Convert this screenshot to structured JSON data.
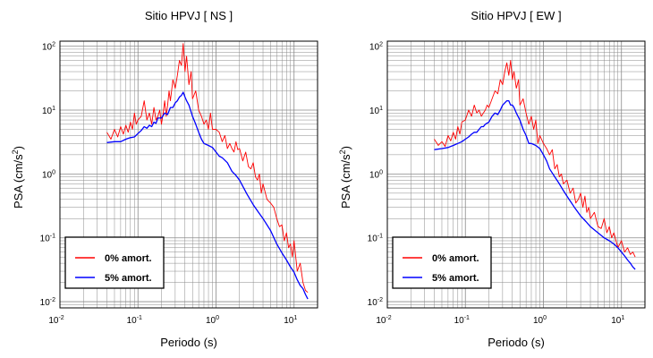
{
  "chart_data": [
    {
      "type": "line",
      "title": "Sitio HPVJ [ NS ]",
      "xlabel": "Periodo (s)",
      "ylabel_main": "PSA (cm/s",
      "ylabel_sup": "2",
      "ylabel_end": ")",
      "x_scale": "log",
      "y_scale": "log",
      "xlim": [
        0.01,
        20
      ],
      "ylim": [
        0.008,
        120
      ],
      "x_ticks": [
        {
          "value": 0.01,
          "base": "10",
          "exp": "-2"
        },
        {
          "value": 0.1,
          "base": "10",
          "exp": "-1"
        },
        {
          "value": 1,
          "base": "10",
          "exp": "0"
        },
        {
          "value": 10,
          "base": "10",
          "exp": "1"
        }
      ],
      "y_ticks": [
        {
          "value": 0.01,
          "base": "10",
          "exp": "-2"
        },
        {
          "value": 0.1,
          "base": "10",
          "exp": "-1"
        },
        {
          "value": 1,
          "base": "10",
          "exp": "0"
        },
        {
          "value": 10,
          "base": "10",
          "exp": "1"
        },
        {
          "value": 100,
          "base": "10",
          "exp": "2"
        }
      ],
      "grid": true,
      "legend_position": "bottom-left",
      "series": [
        {
          "name": "0% amort.",
          "color": "#ff0000",
          "x": [
            0.04,
            0.045,
            0.05,
            0.055,
            0.06,
            0.065,
            0.07,
            0.075,
            0.08,
            0.085,
            0.09,
            0.095,
            0.1,
            0.11,
            0.12,
            0.13,
            0.14,
            0.15,
            0.16,
            0.17,
            0.18,
            0.19,
            0.2,
            0.21,
            0.22,
            0.23,
            0.24,
            0.25,
            0.26,
            0.28,
            0.3,
            0.32,
            0.34,
            0.36,
            0.38,
            0.4,
            0.42,
            0.45,
            0.48,
            0.5,
            0.55,
            0.6,
            0.65,
            0.7,
            0.75,
            0.8,
            0.85,
            0.9,
            0.95,
            1.0,
            1.1,
            1.2,
            1.3,
            1.4,
            1.5,
            1.6,
            1.7,
            1.8,
            1.9,
            2.0,
            2.2,
            2.4,
            2.6,
            2.8,
            3.0,
            3.2,
            3.4,
            3.6,
            3.8,
            4.0,
            4.5,
            5.0,
            5.5,
            6.0,
            6.5,
            7.0,
            7.5,
            8.0,
            8.5,
            9.0,
            9.5,
            10,
            11,
            12,
            13,
            14,
            15
          ],
          "y": [
            4.5,
            3.5,
            5,
            3.8,
            5.5,
            4.2,
            5.8,
            4.5,
            6.5,
            5,
            9,
            6,
            7,
            8,
            14,
            7,
            9,
            6,
            11,
            7,
            8,
            10,
            6,
            9,
            14,
            8,
            12,
            20,
            14,
            30,
            22,
            35,
            60,
            50,
            110,
            40,
            70,
            25,
            40,
            15,
            20,
            10,
            8,
            6,
            7,
            5,
            9,
            5,
            5,
            5,
            4.5,
            3.2,
            4,
            2.5,
            3,
            2.5,
            2.2,
            3.2,
            2.4,
            2.5,
            1.6,
            2.2,
            1.3,
            1.2,
            1.5,
            0.9,
            0.8,
            1,
            0.5,
            0.7,
            0.4,
            0.35,
            0.3,
            0.2,
            0.15,
            0.16,
            0.09,
            0.12,
            0.07,
            0.08,
            0.05,
            0.09,
            0.03,
            0.04,
            0.02,
            0.015,
            0.014
          ]
        },
        {
          "name": "5% amort.",
          "color": "#0000ff",
          "x": [
            0.04,
            0.05,
            0.06,
            0.07,
            0.08,
            0.09,
            0.1,
            0.11,
            0.12,
            0.13,
            0.14,
            0.15,
            0.16,
            0.17,
            0.18,
            0.2,
            0.22,
            0.24,
            0.26,
            0.28,
            0.3,
            0.32,
            0.34,
            0.36,
            0.38,
            0.4,
            0.42,
            0.45,
            0.5,
            0.55,
            0.6,
            0.65,
            0.7,
            0.8,
            0.9,
            1.0,
            1.1,
            1.2,
            1.4,
            1.6,
            1.8,
            2.0,
            2.5,
            3.0,
            3.5,
            4.0,
            5.0,
            6.0,
            7.0,
            8.0,
            9.0,
            10,
            11,
            12,
            13,
            14,
            15
          ],
          "y": [
            3.1,
            3.2,
            3.2,
            3.5,
            3.7,
            3.8,
            4.3,
            4.8,
            5.5,
            5.2,
            5.8,
            5.5,
            6.5,
            6.2,
            7.5,
            7.5,
            9,
            8.5,
            11,
            11,
            13,
            14,
            16,
            17,
            19,
            16,
            14,
            12,
            8,
            6,
            4.5,
            3.5,
            3,
            2.8,
            2.6,
            2.2,
            1.9,
            1.8,
            1.5,
            1.1,
            0.95,
            0.8,
            0.48,
            0.33,
            0.25,
            0.2,
            0.13,
            0.08,
            0.058,
            0.045,
            0.035,
            0.029,
            0.022,
            0.018,
            0.016,
            0.013,
            0.011
          ]
        }
      ]
    },
    {
      "type": "line",
      "title": "Sitio HPVJ [ EW ]",
      "xlabel": "Periodo (s)",
      "ylabel_main": "PSA (cm/s",
      "ylabel_sup": "2",
      "ylabel_end": ")",
      "x_scale": "log",
      "y_scale": "log",
      "xlim": [
        0.01,
        20
      ],
      "ylim": [
        0.008,
        120
      ],
      "x_ticks": [
        {
          "value": 0.01,
          "base": "10",
          "exp": "-2"
        },
        {
          "value": 0.1,
          "base": "10",
          "exp": "-1"
        },
        {
          "value": 1,
          "base": "10",
          "exp": "0"
        },
        {
          "value": 10,
          "base": "10",
          "exp": "1"
        }
      ],
      "y_ticks": [
        {
          "value": 0.01,
          "base": "10",
          "exp": "-2"
        },
        {
          "value": 0.1,
          "base": "10",
          "exp": "-1"
        },
        {
          "value": 1,
          "base": "10",
          "exp": "0"
        },
        {
          "value": 10,
          "base": "10",
          "exp": "1"
        },
        {
          "value": 100,
          "base": "10",
          "exp": "2"
        }
      ],
      "grid": true,
      "legend_position": "bottom-left",
      "series": [
        {
          "name": "0% amort.",
          "color": "#ff0000",
          "x": [
            0.04,
            0.045,
            0.05,
            0.055,
            0.06,
            0.065,
            0.07,
            0.075,
            0.08,
            0.085,
            0.09,
            0.1,
            0.11,
            0.12,
            0.13,
            0.14,
            0.15,
            0.16,
            0.17,
            0.18,
            0.19,
            0.2,
            0.22,
            0.24,
            0.26,
            0.28,
            0.3,
            0.32,
            0.34,
            0.36,
            0.38,
            0.4,
            0.42,
            0.45,
            0.48,
            0.5,
            0.55,
            0.6,
            0.65,
            0.7,
            0.75,
            0.8,
            0.85,
            0.9,
            1.0,
            1.1,
            1.2,
            1.3,
            1.4,
            1.5,
            1.6,
            1.7,
            1.8,
            2.0,
            2.2,
            2.4,
            2.6,
            2.8,
            3.0,
            3.2,
            3.4,
            3.6,
            3.8,
            4.0,
            4.5,
            5.0,
            5.5,
            6.0,
            6.5,
            7.0,
            7.5,
            8.0,
            9.0,
            10,
            11,
            12,
            13,
            14,
            15
          ],
          "y": [
            3.5,
            2.8,
            3.2,
            2.7,
            4,
            3.3,
            4.5,
            3.5,
            5.5,
            4.2,
            6.5,
            7,
            10,
            8,
            12,
            9,
            10,
            8,
            9,
            10,
            12,
            11,
            15,
            20,
            18,
            30,
            25,
            40,
            55,
            35,
            60,
            30,
            40,
            22,
            30,
            12,
            15,
            9,
            6,
            8,
            5,
            7,
            3,
            4,
            3,
            2.5,
            2,
            2.4,
            1.2,
            1.4,
            0.9,
            1,
            0.7,
            0.8,
            0.5,
            0.6,
            0.35,
            0.4,
            0.5,
            0.3,
            0.45,
            0.25,
            0.3,
            0.2,
            0.25,
            0.15,
            0.14,
            0.2,
            0.12,
            0.15,
            0.1,
            0.12,
            0.07,
            0.09,
            0.06,
            0.07,
            0.055,
            0.06,
            0.05
          ]
        },
        {
          "name": "5% amort.",
          "color": "#0000ff",
          "x": [
            0.04,
            0.05,
            0.06,
            0.07,
            0.08,
            0.09,
            0.1,
            0.11,
            0.12,
            0.13,
            0.14,
            0.15,
            0.16,
            0.17,
            0.18,
            0.2,
            0.22,
            0.24,
            0.26,
            0.28,
            0.3,
            0.32,
            0.34,
            0.36,
            0.38,
            0.4,
            0.42,
            0.45,
            0.5,
            0.55,
            0.6,
            0.65,
            0.7,
            0.8,
            0.9,
            1.0,
            1.1,
            1.2,
            1.4,
            1.6,
            1.8,
            2.0,
            2.5,
            3.0,
            3.5,
            4.0,
            5.0,
            6.0,
            7.0,
            8.0,
            9.0,
            10,
            11,
            12,
            13,
            14,
            15
          ],
          "y": [
            2.4,
            2.5,
            2.6,
            2.8,
            3.0,
            3.2,
            3.5,
            3.8,
            4.2,
            4.5,
            4.5,
            5.0,
            5.5,
            5.5,
            6.0,
            6.5,
            8.0,
            9.0,
            8.5,
            10,
            12,
            13,
            14,
            14,
            12,
            12,
            11,
            9,
            7,
            5,
            4,
            3,
            3,
            2.8,
            2.5,
            2.0,
            1.6,
            1.2,
            0.9,
            0.7,
            0.55,
            0.45,
            0.3,
            0.22,
            0.18,
            0.15,
            0.12,
            0.1,
            0.09,
            0.08,
            0.07,
            0.06,
            0.052,
            0.045,
            0.04,
            0.035,
            0.032
          ]
        }
      ]
    }
  ]
}
